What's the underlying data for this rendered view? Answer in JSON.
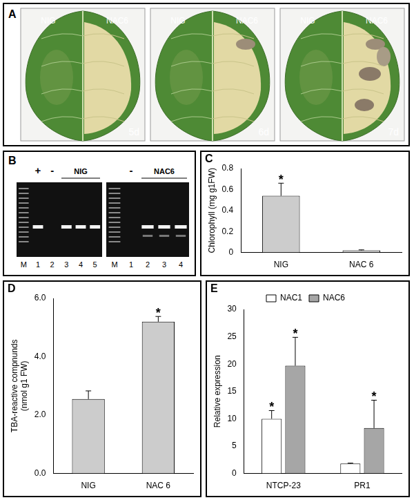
{
  "figure": {
    "panel_a": {
      "label": "A",
      "photos": [
        {
          "left": "NIG",
          "right": "NAC6",
          "day": "5d"
        },
        {
          "left": "NIG",
          "right": "NAC6",
          "day": "6d"
        },
        {
          "left": "NIG",
          "right": "NAC6",
          "day": "7d"
        }
      ]
    },
    "panel_b": {
      "label": "B",
      "gels": [
        {
          "lanes": [
            "M",
            "1",
            "2",
            "3",
            "4",
            "5"
          ],
          "marks": [
            {
              "text": "+",
              "lanes": [
                "1"
              ]
            },
            {
              "text": "-",
              "lanes": [
                "2"
              ]
            },
            {
              "text": "NIG",
              "lanes": [
                "3",
                "4",
                "5"
              ]
            }
          ],
          "bands": [
            "1",
            "3",
            "4",
            "5"
          ]
        },
        {
          "lanes": [
            "M",
            "1",
            "2",
            "3",
            "4"
          ],
          "marks": [
            {
              "text": "-",
              "lanes": [
                "1"
              ]
            },
            {
              "text": "NAC6",
              "lanes": [
                "2",
                "3",
                "4"
              ]
            }
          ],
          "bands": [
            "2",
            "3",
            "4"
          ]
        }
      ]
    }
  },
  "chart_data": [
    {
      "type": "bar",
      "y_label": "Chlorophyll (mg g1FW)",
      "categories": [
        "NIG",
        "NAC 6"
      ],
      "values": [
        0.54,
        0.02
      ],
      "errors": [
        0.12,
        0.005
      ],
      "color": "#cccccc",
      "ylim": [
        0,
        0.8
      ],
      "yticks": [
        0,
        0.2,
        0.4,
        0.6,
        0.8
      ],
      "grid": false,
      "annotations": [
        {
          "text": "C"
        },
        {
          "text": "*",
          "category": "NIG"
        }
      ]
    },
    {
      "type": "bar",
      "y_label": [
        "TBA-reactive compnunds",
        "(nmol g1 FW)"
      ],
      "categories": [
        "NIG",
        "NAC 6"
      ],
      "values": [
        2.55,
        5.2
      ],
      "errors": [
        0.28,
        0.18
      ],
      "color": "#cccccc",
      "ylim": [
        0,
        6
      ],
      "yticks": [
        {
          "value": 0,
          "label": "0.0"
        },
        {
          "value": 2,
          "label": "2.0"
        },
        {
          "value": 4,
          "label": "4.0"
        },
        {
          "value": 6,
          "label": "6.0"
        }
      ],
      "grid": false,
      "annotations": [
        {
          "text": "D"
        },
        {
          "text": "*",
          "category": "NAC 6"
        }
      ]
    },
    {
      "type": "bar",
      "y_label": "Relative expression",
      "categories": [
        "NTCP-23",
        "PR1"
      ],
      "series": [
        {
          "name": "NAC1",
          "color": "#ffffff",
          "values": [
            10,
            1.8
          ],
          "errors": [
            1.5,
            0.1
          ]
        },
        {
          "name": "NAC6",
          "color": "#a6a6a6",
          "values": [
            19.7,
            8.3
          ],
          "errors": [
            5.2,
            5.1
          ]
        }
      ],
      "ylim": [
        0,
        30
      ],
      "yticks": [
        0,
        5,
        10,
        15,
        20,
        25,
        30
      ],
      "grid": false,
      "legend": "top",
      "annotations": [
        {
          "text": "E"
        },
        {
          "text": "*",
          "category": "NTCP-23",
          "series": "NAC1"
        },
        {
          "text": "*",
          "category": "NTCP-23",
          "series": "NAC6"
        },
        {
          "text": "*",
          "category": "PR1",
          "series": "NAC6"
        }
      ]
    }
  ]
}
